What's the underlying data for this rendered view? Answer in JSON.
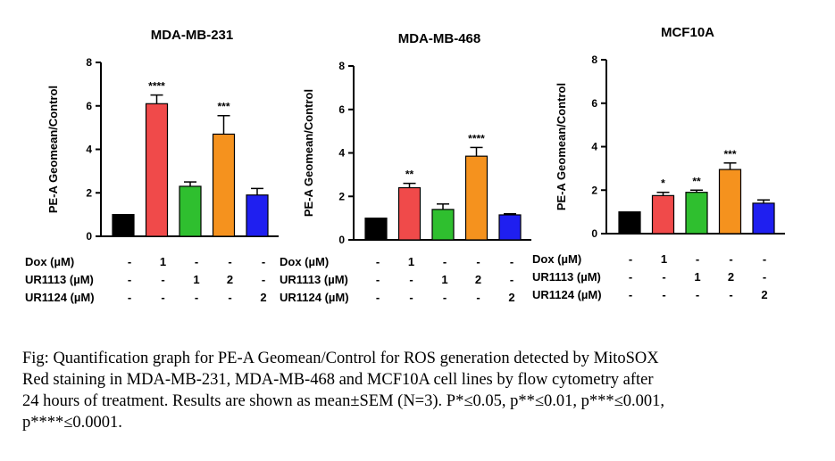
{
  "chart_data": [
    {
      "type": "bar",
      "title": "MDA-MB-231",
      "ylabel": "PE-A Geomean/Control",
      "ylim": [
        0,
        8
      ],
      "yticks": [
        "0",
        "2",
        "4",
        "6",
        "8"
      ],
      "values": [
        1.0,
        6.1,
        2.3,
        4.7,
        1.9
      ],
      "errors": [
        0.0,
        0.4,
        0.2,
        0.85,
        0.3
      ],
      "significance": [
        "",
        "****",
        "",
        "***",
        ""
      ],
      "colors": [
        "#000000",
        "#f04a4a",
        "#2fbf2f",
        "#f5921e",
        "#1f1ff0"
      ]
    },
    {
      "type": "bar",
      "title": "MDA-MB-468",
      "ylabel": "PE-A Geomean/Control",
      "ylim": [
        0,
        8
      ],
      "yticks": [
        "0",
        "2",
        "4",
        "6",
        "8"
      ],
      "values": [
        1.0,
        2.4,
        1.4,
        3.85,
        1.15
      ],
      "errors": [
        0.0,
        0.2,
        0.25,
        0.4,
        0.05
      ],
      "significance": [
        "",
        "**",
        "",
        "****",
        ""
      ],
      "colors": [
        "#000000",
        "#f04a4a",
        "#2fbf2f",
        "#f5921e",
        "#1f1ff0"
      ]
    },
    {
      "type": "bar",
      "title": "MCF10A",
      "ylabel": "PE-A Geomean/Control",
      "ylim": [
        0,
        8
      ],
      "yticks": [
        "0",
        "2",
        "4",
        "6",
        "8"
      ],
      "values": [
        1.0,
        1.75,
        1.9,
        2.95,
        1.4
      ],
      "errors": [
        0.0,
        0.15,
        0.1,
        0.3,
        0.15
      ],
      "significance": [
        "",
        "*",
        "**",
        "***",
        ""
      ],
      "colors": [
        "#000000",
        "#f04a4a",
        "#2fbf2f",
        "#f5921e",
        "#1f1ff0"
      ]
    }
  ],
  "treatment_table": {
    "rows": [
      {
        "label": "Dox (µM)",
        "cells": [
          "-",
          "1",
          "-",
          "-",
          "-"
        ]
      },
      {
        "label": "UR1113 (µM)",
        "cells": [
          "-",
          "-",
          "1",
          "2",
          "-"
        ]
      },
      {
        "label": "UR1124 (µM)",
        "cells": [
          "-",
          "-",
          "-",
          "-",
          "2"
        ]
      }
    ]
  },
  "caption": {
    "lines": [
      "Fig: Quantification graph for PE-A Geomean/Control for ROS generation detected by MitoSOX",
      "Red staining in MDA-MB-231, MDA-MB-468 and MCF10A cell lines by flow cytometry after",
      "24 hours of treatment. Results are shown as mean±SEM (N=3). P*≤0.05, p**≤0.01, p***≤0.001,",
      "p****≤0.0001."
    ]
  }
}
